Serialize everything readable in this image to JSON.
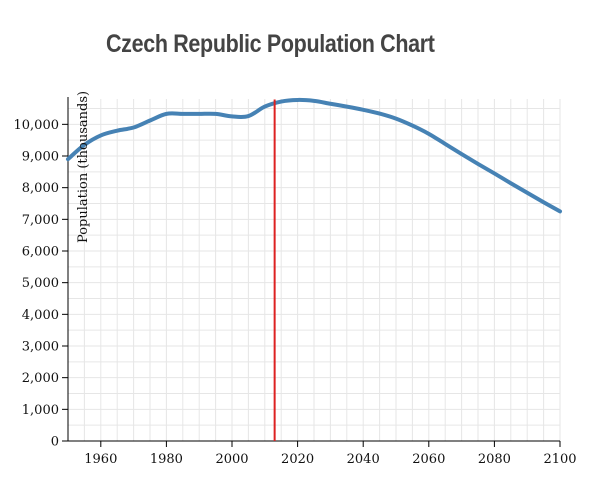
{
  "chart_data": {
    "type": "line",
    "title": "Czech Republic Population Chart",
    "xlabel": "",
    "ylabel": "Population (thousands)",
    "xlim": [
      1950,
      2100
    ],
    "ylim": [
      0,
      10800
    ],
    "x_ticks": [
      1960,
      1980,
      2000,
      2020,
      2040,
      2060,
      2080,
      2100
    ],
    "y_ticks": [
      0,
      1000,
      2000,
      3000,
      4000,
      5000,
      6000,
      7000,
      8000,
      9000,
      10000
    ],
    "grid": true,
    "series": [
      {
        "color": "#4682b4",
        "x": [
          1950,
          1955,
          1960,
          1965,
          1970,
          1975,
          1980,
          1985,
          1990,
          1995,
          2000,
          2005,
          2010,
          2015,
          2020,
          2025,
          2030,
          2035,
          2040,
          2045,
          2050,
          2055,
          2060,
          2065,
          2070,
          2075,
          2080,
          2085,
          2090,
          2095,
          2100
        ],
        "y": [
          8900,
          9350,
          9650,
          9800,
          9900,
          10120,
          10330,
          10330,
          10330,
          10330,
          10250,
          10260,
          10560,
          10720,
          10770,
          10740,
          10650,
          10560,
          10460,
          10340,
          10180,
          9960,
          9700,
          9380,
          9060,
          8750,
          8450,
          8140,
          7840,
          7540,
          7250
        ]
      }
    ],
    "marker_line": {
      "x": 2013,
      "color": "#dd2222"
    }
  }
}
